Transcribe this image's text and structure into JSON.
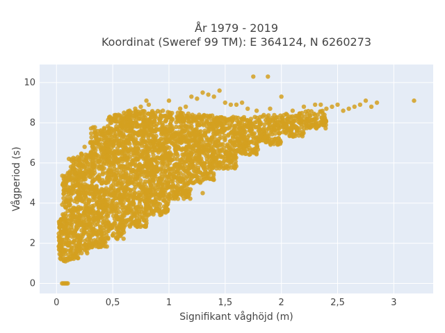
{
  "chart_data": {
    "type": "scatter",
    "title_line1": "År 1979 - 2019",
    "title_line2": "Koordinat (Sweref 99 TM): E 364124, N 6260273",
    "xlabel": "Signifikant våghöjd (m)",
    "ylabel": "Vågperiod (s)",
    "xlim": [
      -0.15,
      3.35
    ],
    "ylim": [
      -0.5,
      10.9
    ],
    "x_ticks": [
      0,
      0.5,
      1,
      1.5,
      2,
      2.5,
      3
    ],
    "x_tick_labels": [
      "0",
      "0,5",
      "1",
      "1,5",
      "2",
      "2,5",
      "3"
    ],
    "y_ticks": [
      0,
      2,
      4,
      6,
      8,
      10
    ],
    "y_tick_labels": [
      "0",
      "2",
      "4",
      "6",
      "8",
      "10"
    ],
    "grid": true,
    "colors": {
      "plot_bg": "#e5ecf6",
      "grid": "#ffffff",
      "marker": "#d4a020",
      "text": "#444444"
    },
    "density_bands": [
      {
        "x_from": 0.02,
        "x_to": 0.05,
        "y_min": 1.2,
        "y_max": 3.2
      },
      {
        "x_from": 0.05,
        "x_to": 0.1,
        "y_min": 1.1,
        "y_max": 5.4
      },
      {
        "x_from": 0.1,
        "x_to": 0.2,
        "y_min": 1.2,
        "y_max": 6.3
      },
      {
        "x_from": 0.2,
        "x_to": 0.3,
        "y_min": 1.5,
        "y_max": 6.6
      },
      {
        "x_from": 0.3,
        "x_to": 0.45,
        "y_min": 1.8,
        "y_max": 7.8
      },
      {
        "x_from": 0.45,
        "x_to": 0.6,
        "y_min": 2.2,
        "y_max": 8.4
      },
      {
        "x_from": 0.6,
        "x_to": 0.8,
        "y_min": 2.8,
        "y_max": 8.6
      },
      {
        "x_from": 0.8,
        "x_to": 1.0,
        "y_min": 3.4,
        "y_max": 8.6
      },
      {
        "x_from": 1.0,
        "x_to": 1.2,
        "y_min": 4.2,
        "y_max": 8.5
      },
      {
        "x_from": 1.2,
        "x_to": 1.4,
        "y_min": 5.0,
        "y_max": 8.4
      },
      {
        "x_from": 1.4,
        "x_to": 1.6,
        "y_min": 5.7,
        "y_max": 8.3
      },
      {
        "x_from": 1.6,
        "x_to": 1.8,
        "y_min": 6.4,
        "y_max": 8.3
      },
      {
        "x_from": 1.8,
        "x_to": 2.0,
        "y_min": 6.9,
        "y_max": 8.4
      },
      {
        "x_from": 2.0,
        "x_to": 2.2,
        "y_min": 7.3,
        "y_max": 8.5
      },
      {
        "x_from": 2.2,
        "x_to": 2.4,
        "y_min": 7.7,
        "y_max": 8.6
      }
    ],
    "points": [
      [
        0.05,
        0.0
      ],
      [
        0.06,
        0.0
      ],
      [
        0.07,
        0.0
      ],
      [
        0.08,
        0.0
      ],
      [
        0.09,
        0.0
      ],
      [
        0.1,
        0.0
      ],
      [
        0.2,
        5.9
      ],
      [
        0.25,
        6.8
      ],
      [
        0.3,
        7.0
      ],
      [
        0.35,
        7.3
      ],
      [
        0.6,
        8.5
      ],
      [
        0.65,
        8.6
      ],
      [
        0.7,
        8.7
      ],
      [
        0.75,
        8.8
      ],
      [
        0.8,
        9.1
      ],
      [
        0.82,
        8.9
      ],
      [
        1.0,
        9.1
      ],
      [
        1.1,
        8.7
      ],
      [
        1.15,
        8.8
      ],
      [
        1.2,
        9.3
      ],
      [
        1.25,
        9.2
      ],
      [
        1.3,
        9.5
      ],
      [
        1.35,
        9.4
      ],
      [
        1.4,
        9.3
      ],
      [
        1.45,
        9.6
      ],
      [
        1.5,
        9.0
      ],
      [
        1.55,
        8.9
      ],
      [
        1.6,
        8.9
      ],
      [
        1.65,
        9.0
      ],
      [
        1.7,
        8.7
      ],
      [
        1.78,
        8.6
      ],
      [
        1.75,
        10.3
      ],
      [
        1.88,
        10.3
      ],
      [
        2.0,
        9.3
      ],
      [
        1.9,
        8.7
      ],
      [
        2.05,
        8.4
      ],
      [
        2.1,
        8.6
      ],
      [
        2.2,
        8.8
      ],
      [
        2.3,
        8.9
      ],
      [
        2.35,
        8.9
      ],
      [
        2.4,
        8.7
      ],
      [
        2.45,
        8.8
      ],
      [
        2.5,
        8.9
      ],
      [
        2.55,
        8.6
      ],
      [
        2.6,
        8.7
      ],
      [
        2.65,
        8.8
      ],
      [
        2.7,
        8.9
      ],
      [
        2.75,
        9.1
      ],
      [
        2.8,
        8.8
      ],
      [
        2.85,
        9.0
      ],
      [
        3.18,
        9.1
      ],
      [
        0.75,
        2.9
      ],
      [
        0.8,
        3.3
      ],
      [
        0.95,
        3.6
      ],
      [
        1.05,
        4.3
      ],
      [
        1.15,
        4.4
      ],
      [
        1.3,
        4.5
      ],
      [
        0.5,
        2.4
      ],
      [
        0.55,
        2.7
      ],
      [
        0.65,
        2.9
      ],
      [
        0.8,
        3.0
      ],
      [
        0.78,
        2.85
      ],
      [
        0.06,
        1.2
      ],
      [
        0.08,
        1.1
      ],
      [
        0.1,
        1.15
      ],
      [
        0.12,
        1.2
      ],
      [
        0.15,
        1.3
      ]
    ]
  }
}
